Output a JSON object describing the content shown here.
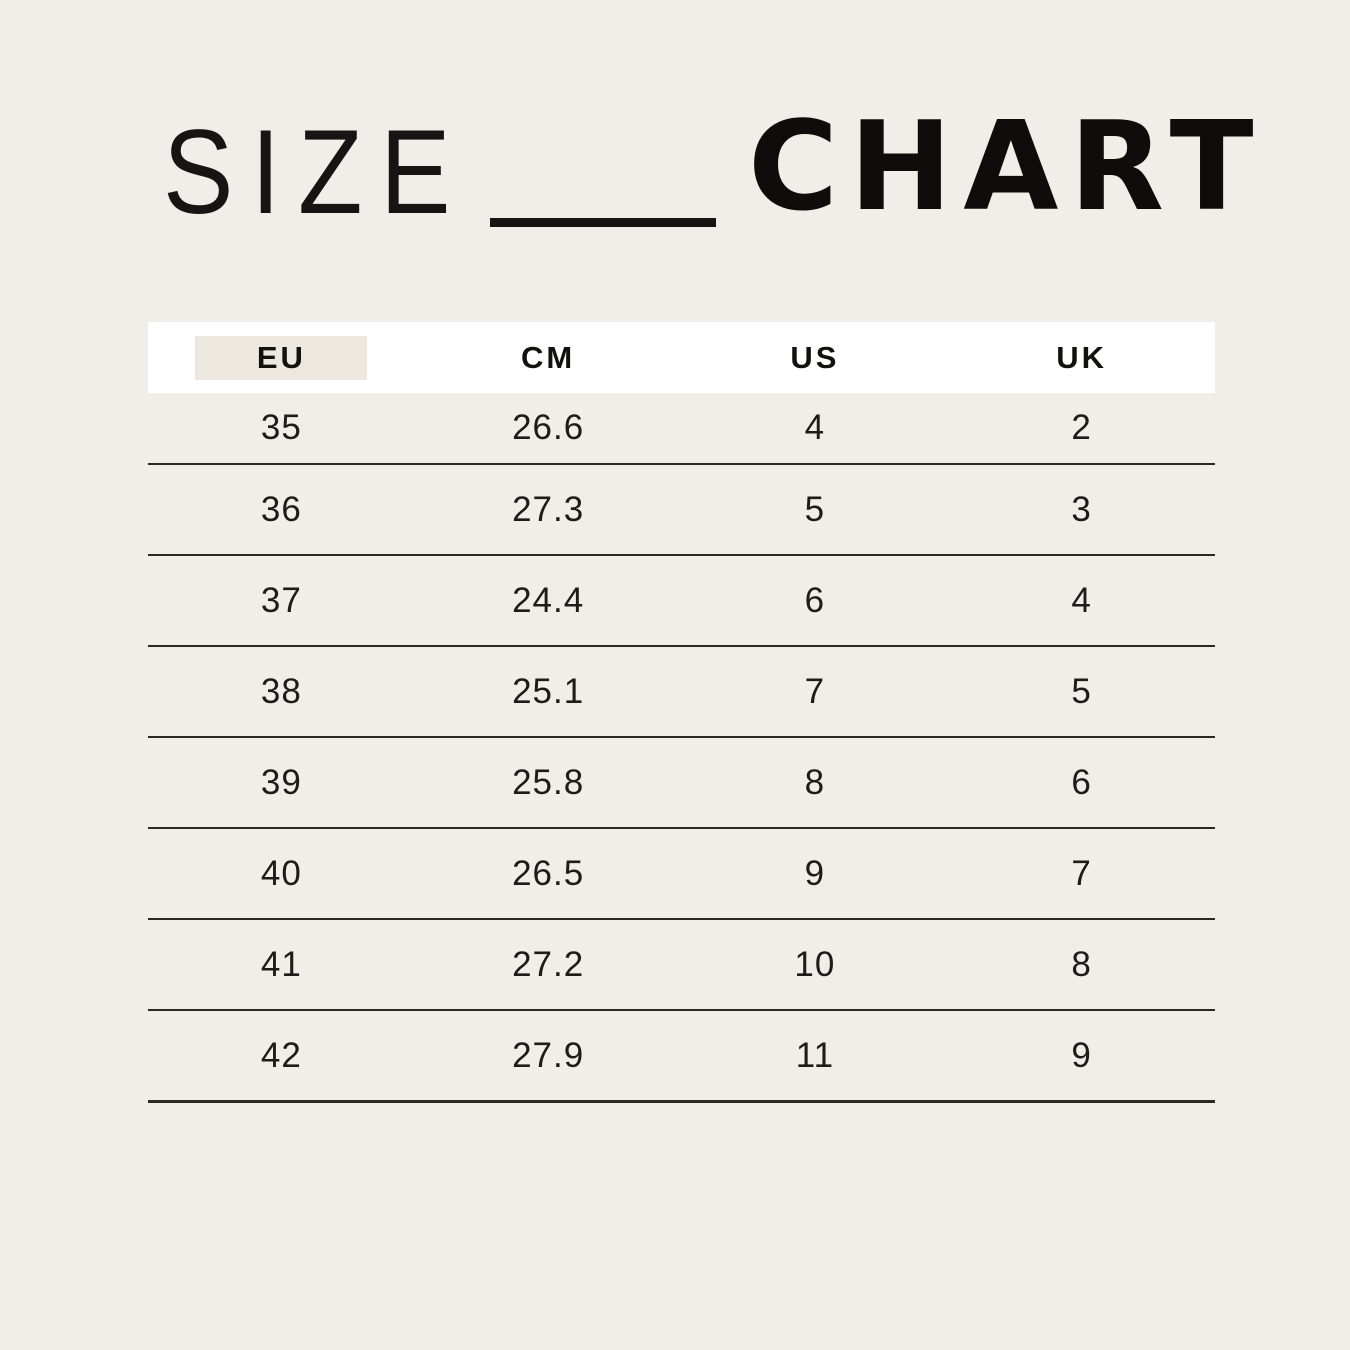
{
  "title": {
    "word_light": "SIZE",
    "word_bold": "CHART"
  },
  "colors": {
    "page_background": "#F0EEE9",
    "header_band": "#FFFFFF",
    "header_highlight": "#ECE8E0",
    "text": "#1A1A1A",
    "divider_line": "#2B2925"
  },
  "chart_data": {
    "type": "table",
    "title": "SIZE CHART",
    "columns": [
      "EU",
      "CM",
      "US",
      "UK"
    ],
    "highlighted_column": "EU",
    "rows": [
      [
        "35",
        "26.6",
        "4",
        "2"
      ],
      [
        "36",
        "27.3",
        "5",
        "3"
      ],
      [
        "37",
        "24.4",
        "6",
        "4"
      ],
      [
        "38",
        "25.1",
        "7",
        "5"
      ],
      [
        "39",
        "25.8",
        "8",
        "6"
      ],
      [
        "40",
        "26.5",
        "9",
        "7"
      ],
      [
        "41",
        "27.2",
        "10",
        "8"
      ],
      [
        "42",
        "27.9",
        "11",
        "9"
      ]
    ]
  }
}
